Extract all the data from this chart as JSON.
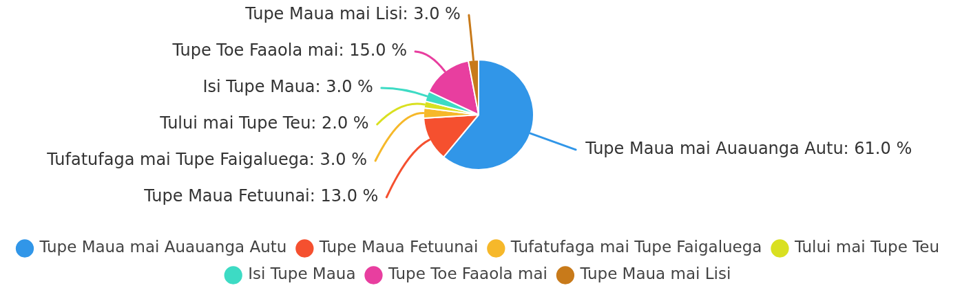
{
  "chart_data": {
    "type": "pie",
    "categories": [
      "Tupe Maua mai Auauanga Autu",
      "Tupe Maua Fetuunai",
      "Tufatufaga mai Tupe Faigaluega",
      "Tului mai Tupe Teu",
      "Isi Tupe Maua",
      "Tupe Toe Faaola mai",
      "Tupe Maua mai Lisi"
    ],
    "values": [
      61,
      13,
      3,
      2,
      3,
      15,
      3
    ],
    "colors": [
      "#3196e8",
      "#f5502f",
      "#f6b82a",
      "#d9e021",
      "#3ddbc4",
      "#e83e9f",
      "#c87a1a"
    ],
    "value_labels": [
      "Tupe Maua mai Auauanga Autu: 61.0 %",
      "Tupe Maua Fetuunai: 13.0 %",
      "Tufatufaga mai Tupe Faigaluega: 3.0 %",
      "Tului mai Tupe Teu: 2.0 %",
      "Isi Tupe Maua: 3.0 %",
      "Tupe Toe Faaola mai: 15.0 %",
      "Tupe Maua mai Lisi: 3.0 %"
    ],
    "legend": "bottom"
  }
}
